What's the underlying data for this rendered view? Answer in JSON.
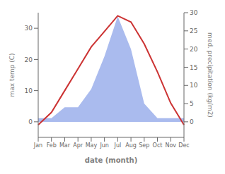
{
  "chart_data": {
    "type": "line",
    "categories": [
      "Jan",
      "Feb",
      "Mar",
      "Apr",
      "May",
      "Jun",
      "Jul",
      "Aug",
      "Sep",
      "Oct",
      "Nov",
      "Dec"
    ],
    "series": [
      {
        "type": "area",
        "color": "#aabbee",
        "axis": "y2",
        "values": [
          1,
          1,
          4,
          4,
          9,
          18,
          29,
          20,
          5,
          1,
          1,
          1
        ]
      },
      {
        "type": "line",
        "color": "#cc3333",
        "values": [
          -1,
          3,
          10,
          17,
          24,
          29,
          34,
          32,
          25,
          16,
          6,
          -1
        ]
      }
    ],
    "xlabel": "date (month)",
    "ylabel": "max temp (C)",
    "y2label": "med. precipitation (kg/m2)",
    "ylim": [
      -5,
      35
    ],
    "yticks": [
      0,
      10,
      20,
      30
    ],
    "y2lim": [
      -4.285714285714286,
      30
    ],
    "y2ticks": [
      0,
      5,
      10,
      15,
      20,
      25,
      30
    ],
    "grid": false
  }
}
